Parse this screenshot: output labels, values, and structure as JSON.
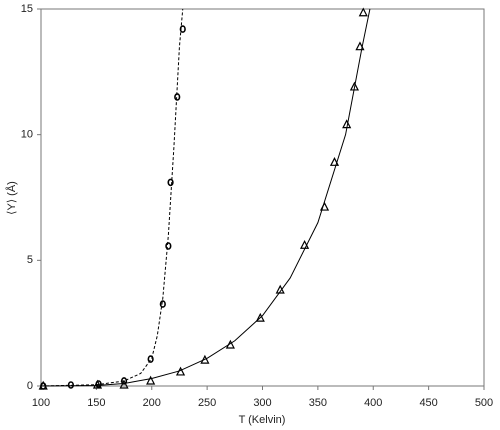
{
  "chart_data": {
    "type": "scatter",
    "xlabel": "T (Kelvin)",
    "ylabel": "⟨Y⟩ (Å)",
    "xlim": [
      100,
      500
    ],
    "xticks": [
      100,
      150,
      200,
      250,
      300,
      350,
      400,
      450,
      500
    ],
    "ylim": [
      0,
      15
    ],
    "yticks": [
      0,
      5,
      10,
      15
    ],
    "grid": false,
    "series": [
      {
        "marker": "circle",
        "color": "#000000",
        "x": [
          102,
          127,
          152,
          175,
          199,
          210,
          215,
          217,
          223,
          228
        ],
        "values": [
          0,
          0.04,
          0.08,
          0.2,
          1.07,
          3.26,
          5.57,
          8.1,
          11.5,
          14.2
        ]
      },
      {
        "marker": "triangle",
        "color": "#000000",
        "x": [
          102,
          151,
          175,
          199,
          226,
          248,
          271,
          298,
          316,
          338,
          356,
          365,
          376,
          383,
          388,
          391
        ],
        "values": [
          0,
          0.04,
          0.04,
          0.2,
          0.56,
          1.03,
          1.63,
          2.7,
          3.82,
          5.6,
          7.12,
          8.9,
          10.4,
          11.9,
          13.5,
          14.85
        ]
      }
    ],
    "curves": [
      {
        "style": "dashed",
        "color": "#000000",
        "x": [
          100,
          150,
          175,
          190,
          200,
          205,
          210,
          215,
          220,
          225,
          228
        ],
        "values": [
          0,
          0.05,
          0.2,
          0.5,
          1.1,
          2,
          3.5,
          6,
          9.5,
          13.5,
          15
        ]
      },
      {
        "style": "solid",
        "color": "#000000",
        "x": [
          100,
          150,
          175,
          200,
          225,
          250,
          275,
          300,
          325,
          350,
          375,
          390,
          397
        ],
        "values": [
          0,
          0.02,
          0.1,
          0.3,
          0.6,
          1.1,
          1.8,
          2.8,
          4.3,
          6.5,
          10,
          13.5,
          15
        ]
      }
    ]
  }
}
